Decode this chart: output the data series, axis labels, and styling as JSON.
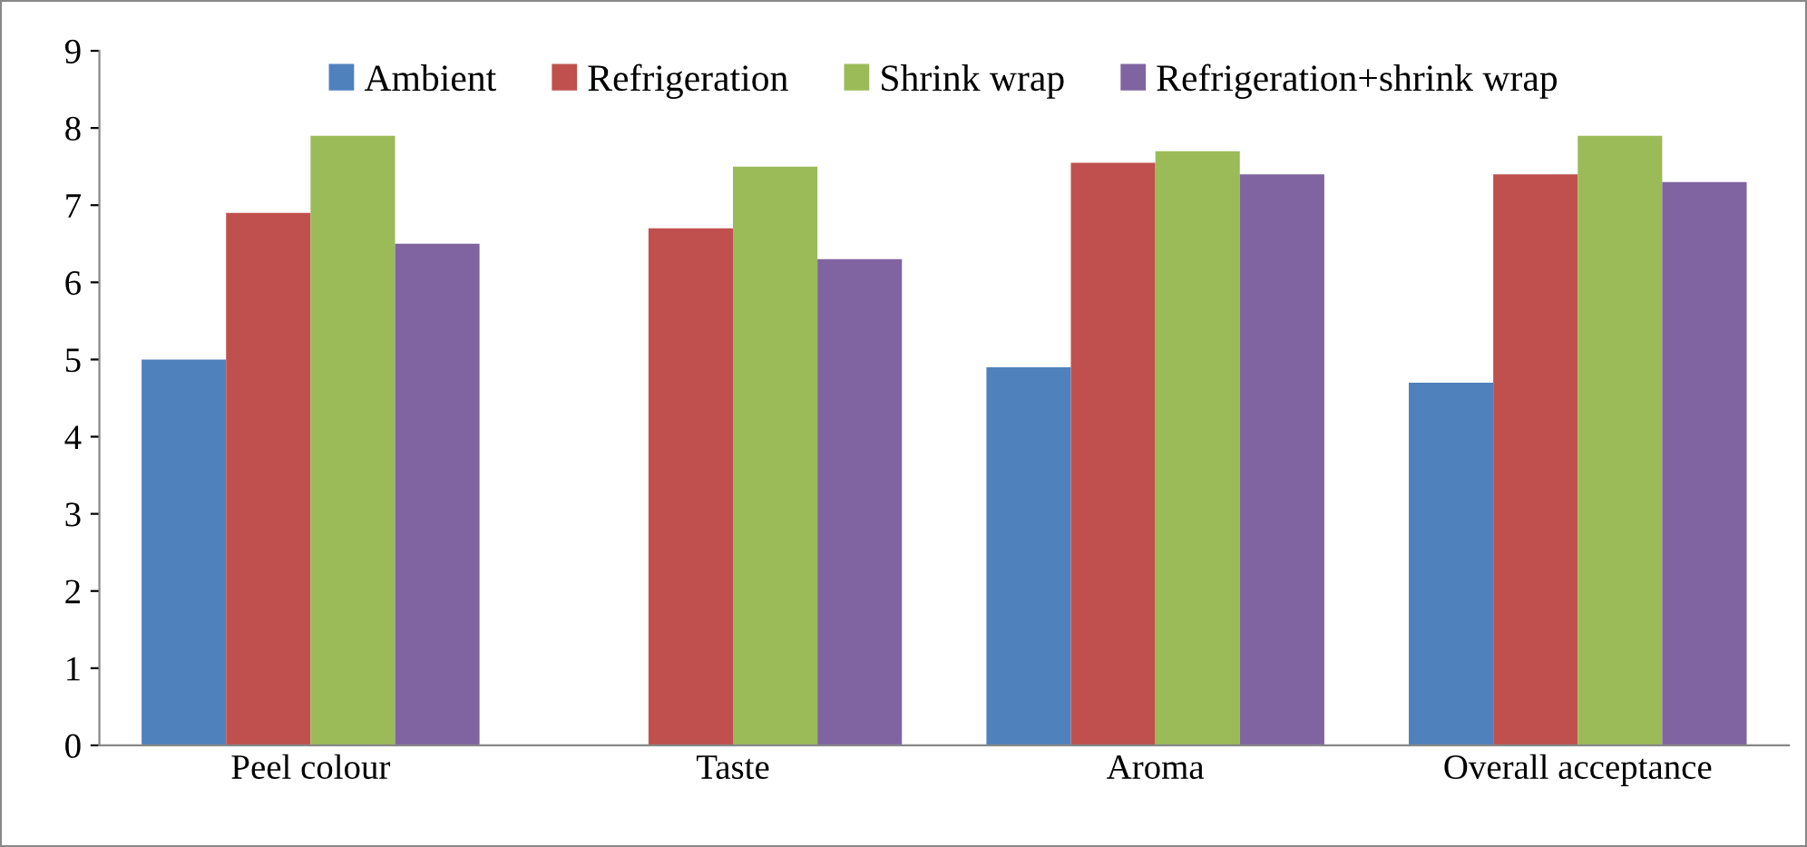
{
  "chart_data": {
    "type": "bar",
    "categories": [
      "Peel colour",
      "Taste",
      "Aroma",
      "Overall acceptance"
    ],
    "series": [
      {
        "name": "Ambient",
        "color": "#4f81bd",
        "values": [
          5.0,
          null,
          4.9,
          4.7
        ]
      },
      {
        "name": "Refrigeration",
        "color": "#c0504d",
        "values": [
          6.9,
          6.7,
          7.55,
          7.4
        ]
      },
      {
        "name": "Shrink wrap",
        "color": "#9bbb59",
        "values": [
          7.9,
          7.5,
          7.7,
          7.9
        ]
      },
      {
        "name": "Refrigeration+shrink wrap",
        "color": "#8064a2",
        "values": [
          6.5,
          6.3,
          7.4,
          7.3
        ]
      }
    ],
    "ylim": [
      0,
      9
    ],
    "yticks": [
      0,
      1,
      2,
      3,
      4,
      5,
      6,
      7,
      8,
      9
    ],
    "grid": false,
    "legend": "top"
  }
}
